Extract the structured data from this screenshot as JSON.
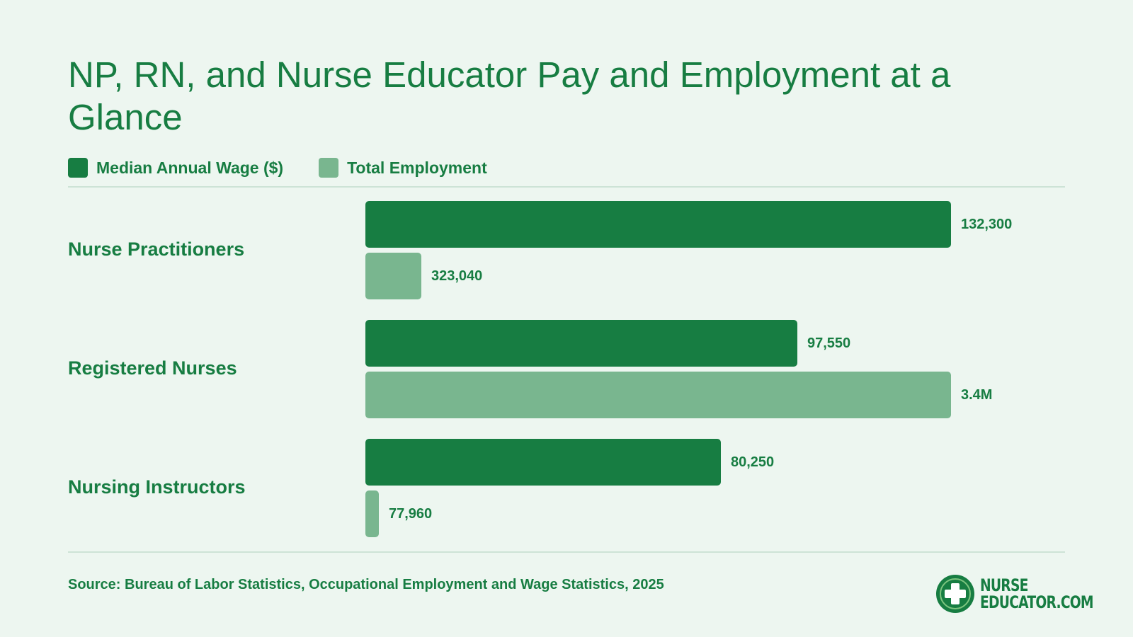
{
  "title": "NP, RN, and Nurse Educator Pay and Employment at a Glance",
  "legend": {
    "wage": "Median Annual Wage ($)",
    "employment": "Total Employment"
  },
  "colors": {
    "wage": "#177d42",
    "employment": "#79b68f",
    "text": "#177d42",
    "background": "#edf6f0"
  },
  "chart_data": {
    "type": "bar",
    "orientation": "horizontal",
    "title": "NP, RN, and Nurse Educator Pay and Employment at a Glance",
    "categories": [
      "Nurse Practitioners",
      "Registered Nurses",
      "Nursing Instructors"
    ],
    "series": [
      {
        "name": "Median Annual Wage ($)",
        "values": [
          132300,
          97550,
          80250
        ],
        "labels": [
          "132,300",
          "97,550",
          "80,250"
        ]
      },
      {
        "name": "Total Employment",
        "values": [
          323040,
          3400000,
          77960
        ],
        "labels": [
          "323,040",
          "3.4M",
          "77,960"
        ]
      }
    ],
    "legend_position": "top-left",
    "grid": false
  },
  "source": "Source: Bureau of Labor Statistics, Occupational Employment and Wage Statistics, 2025",
  "logo": {
    "line1": "NURSE",
    "line2": "EDUCATOR.COM",
    "icon": "medical-cross-icon"
  }
}
